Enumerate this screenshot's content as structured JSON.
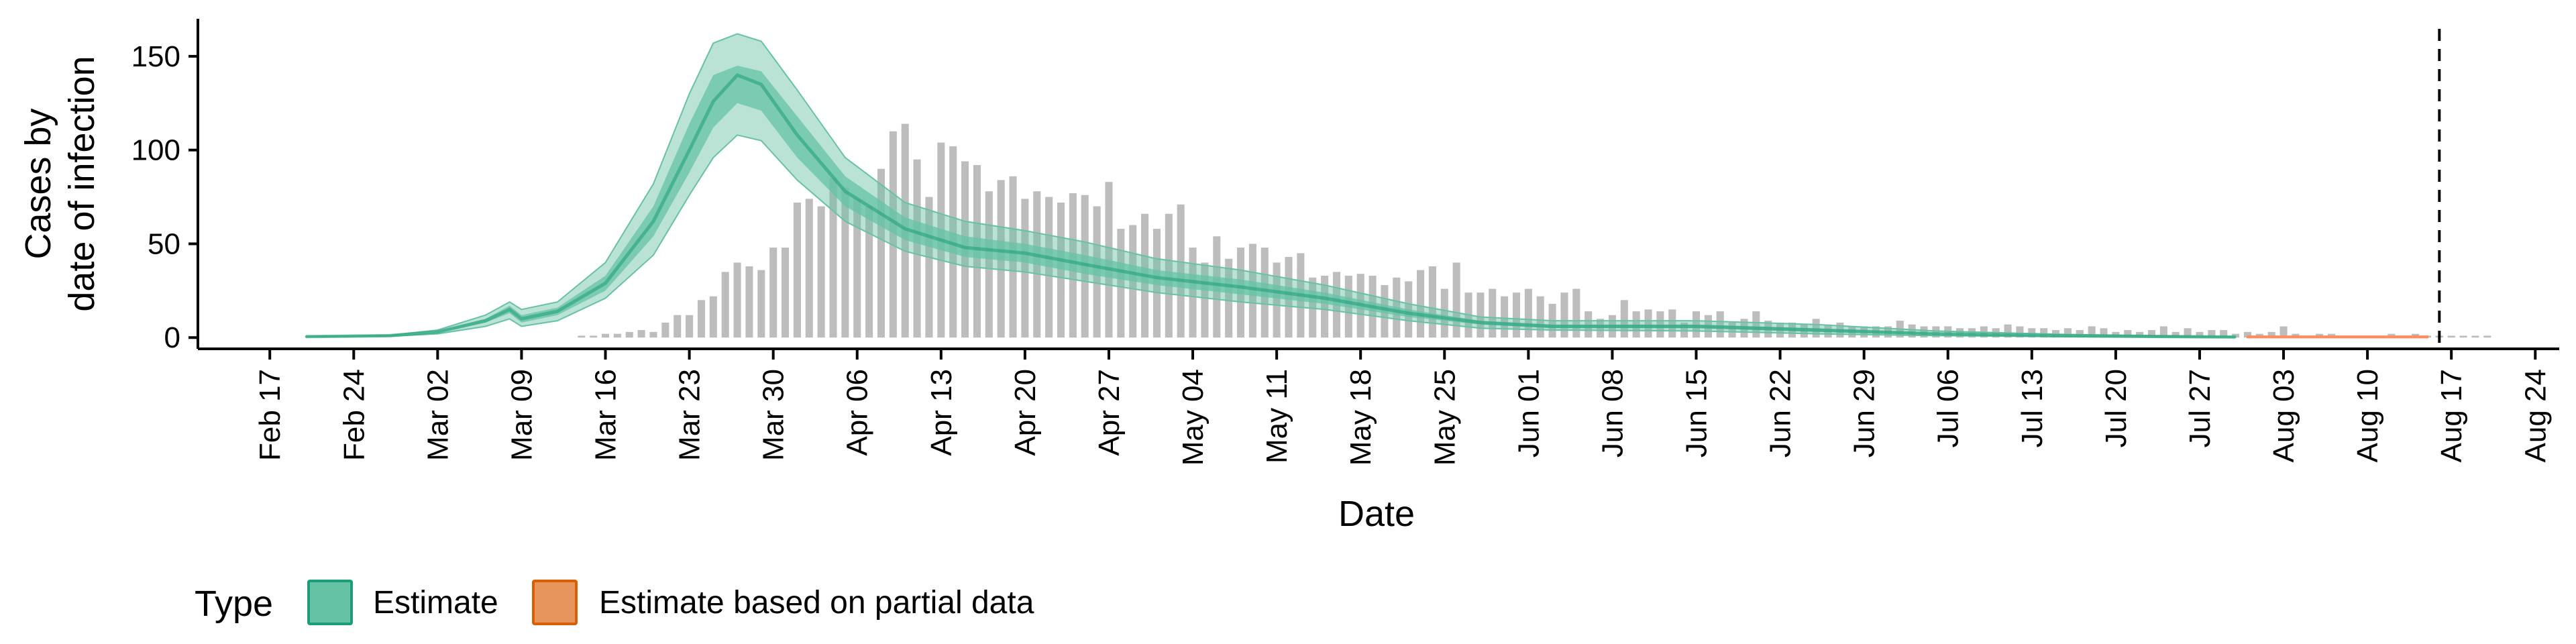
{
  "chart_data": {
    "type": "area",
    "xlabel": "Date",
    "ylabel_lines": [
      "Cases by",
      "date of infection"
    ],
    "ylim": [
      -6,
      170
    ],
    "y_ticks": [
      0,
      50,
      100,
      150
    ],
    "xlim": [
      "2020-02-11",
      "2020-08-26"
    ],
    "x_ticks": [
      {
        "date": "2020-02-17",
        "label": "Feb 17"
      },
      {
        "date": "2020-02-24",
        "label": "Feb 24"
      },
      {
        "date": "2020-03-02",
        "label": "Mar 02"
      },
      {
        "date": "2020-03-09",
        "label": "Mar 09"
      },
      {
        "date": "2020-03-16",
        "label": "Mar 16"
      },
      {
        "date": "2020-03-23",
        "label": "Mar 23"
      },
      {
        "date": "2020-03-30",
        "label": "Mar 30"
      },
      {
        "date": "2020-04-06",
        "label": "Apr 06"
      },
      {
        "date": "2020-04-13",
        "label": "Apr 13"
      },
      {
        "date": "2020-04-20",
        "label": "Apr 20"
      },
      {
        "date": "2020-04-27",
        "label": "Apr 27"
      },
      {
        "date": "2020-05-04",
        "label": "May 04"
      },
      {
        "date": "2020-05-11",
        "label": "May 11"
      },
      {
        "date": "2020-05-18",
        "label": "May 18"
      },
      {
        "date": "2020-05-25",
        "label": "May 25"
      },
      {
        "date": "2020-06-01",
        "label": "Jun 01"
      },
      {
        "date": "2020-06-08",
        "label": "Jun 08"
      },
      {
        "date": "2020-06-15",
        "label": "Jun 15"
      },
      {
        "date": "2020-06-22",
        "label": "Jun 22"
      },
      {
        "date": "2020-06-29",
        "label": "Jun 29"
      },
      {
        "date": "2020-07-06",
        "label": "Jul 06"
      },
      {
        "date": "2020-07-13",
        "label": "Jul 13"
      },
      {
        "date": "2020-07-20",
        "label": "Jul 20"
      },
      {
        "date": "2020-07-27",
        "label": "Jul 27"
      },
      {
        "date": "2020-08-03",
        "label": "Aug 03"
      },
      {
        "date": "2020-08-10",
        "label": "Aug 10"
      },
      {
        "date": "2020-08-17",
        "label": "Aug 17"
      },
      {
        "date": "2020-08-24",
        "label": "Aug 24"
      }
    ],
    "vline_date": "2020-08-16",
    "colors": {
      "estimate": "#66c2a5",
      "estimate_dark": "#1b9e77",
      "partial": "#fc8d62",
      "partial_border": "#d95f02",
      "bars": "#bdbdbd"
    },
    "legend": {
      "title": "Type",
      "position": "bottom-left",
      "items": [
        {
          "label": "Estimate",
          "color": "#66c2a5",
          "border": "#1b9e77"
        },
        {
          "label": "Estimate based on partial data",
          "color": "#e8955d",
          "border": "#d95f02"
        }
      ]
    },
    "bars": {
      "start_date": "2020-03-14",
      "values": [
        1,
        1,
        2,
        2,
        3,
        4,
        3,
        8,
        12,
        12,
        20,
        22,
        35,
        40,
        38,
        36,
        48,
        48,
        72,
        74,
        70,
        85,
        80,
        74,
        70,
        90,
        110,
        114,
        95,
        75,
        104,
        102,
        94,
        92,
        78,
        84,
        86,
        74,
        78,
        75,
        72,
        77,
        76,
        70,
        83,
        58,
        60,
        66,
        58,
        66,
        71,
        48,
        40,
        54,
        42,
        48,
        50,
        48,
        40,
        43,
        45,
        32,
        33,
        35,
        33,
        34,
        33,
        28,
        32,
        30,
        36,
        38,
        26,
        40,
        24,
        24,
        26,
        22,
        24,
        26,
        22,
        18,
        24,
        26,
        14,
        10,
        12,
        20,
        14,
        15,
        14,
        15,
        8,
        14,
        12,
        14,
        8,
        10,
        14,
        9,
        8,
        8,
        7,
        10,
        7,
        8,
        6,
        6,
        6,
        6,
        9,
        7,
        6,
        6,
        6,
        5,
        5,
        6,
        5,
        7,
        6,
        5,
        5,
        4,
        5,
        4,
        6,
        5,
        3,
        4,
        3,
        4,
        6,
        3,
        5,
        3,
        4,
        4,
        2,
        3,
        2,
        3,
        6,
        2,
        1,
        2,
        2,
        1,
        1,
        1,
        1,
        2,
        1,
        2,
        1,
        1,
        1,
        1,
        1,
        1,
        0,
        0,
        0,
        0,
        0,
        0,
        0,
        0,
        0,
        0,
        0,
        0,
        0,
        0,
        0,
        0,
        0,
        0,
        0,
        0,
        0,
        0,
        0,
        0,
        0
      ]
    },
    "estimate": {
      "dates": [
        "2020-02-20",
        "2020-02-27",
        "2020-03-02",
        "2020-03-06",
        "2020-03-08",
        "2020-03-09",
        "2020-03-12",
        "2020-03-16",
        "2020-03-20",
        "2020-03-23",
        "2020-03-25",
        "2020-03-27",
        "2020-03-29",
        "2020-04-01",
        "2020-04-05",
        "2020-04-10",
        "2020-04-15",
        "2020-04-20",
        "2020-04-25",
        "2020-05-01",
        "2020-05-08",
        "2020-05-15",
        "2020-05-22",
        "2020-05-28",
        "2020-06-03",
        "2020-06-15",
        "2020-06-25",
        "2020-07-05",
        "2020-07-15",
        "2020-07-25",
        "2020-07-30"
      ],
      "median": [
        0.5,
        1,
        3,
        9,
        15,
        10,
        14,
        29,
        62,
        100,
        126,
        140,
        135,
        108,
        78,
        58,
        48,
        45,
        39,
        32,
        27,
        21,
        13,
        8,
        6,
        6,
        4,
        2,
        1,
        0.5,
        0.3
      ],
      "lower_50": [
        0.4,
        0.9,
        2.5,
        8,
        13,
        8,
        12,
        25,
        54,
        88,
        112,
        125,
        121,
        96,
        70,
        52,
        43,
        40,
        34,
        28,
        23,
        18,
        11,
        7,
        5,
        5,
        3,
        1.5,
        0.8,
        0.4,
        0.2
      ],
      "upper_50": [
        0.6,
        1.1,
        3.5,
        10,
        17,
        12,
        16,
        33,
        70,
        114,
        140,
        145,
        142,
        118,
        86,
        64,
        54,
        50,
        44,
        36,
        31,
        24,
        15,
        9,
        7,
        7,
        5,
        2.5,
        1.3,
        0.6,
        0.4
      ],
      "lower_90": [
        0.3,
        0.7,
        2,
        6,
        10,
        6,
        9,
        21,
        44,
        76,
        96,
        108,
        105,
        84,
        62,
        46,
        38,
        35,
        30,
        24,
        19,
        15,
        9,
        5,
        4,
        3.5,
        2,
        1,
        0.5,
        0.2,
        0.1
      ],
      "upper_90": [
        0.7,
        1.3,
        4,
        12,
        19,
        15,
        19,
        40,
        82,
        130,
        157,
        162,
        158,
        132,
        96,
        72,
        62,
        57,
        51,
        42,
        36,
        28,
        18,
        11,
        9,
        9,
        7,
        3.5,
        1.8,
        0.8,
        0.5
      ]
    },
    "partial": {
      "dates": [
        "2020-07-31",
        "2020-08-05",
        "2020-08-10",
        "2020-08-15"
      ],
      "median": [
        0.3,
        0.3,
        0.3,
        0.3
      ],
      "lower_90": [
        0.1,
        0.1,
        0.1,
        0.1
      ],
      "upper_90": [
        0.6,
        0.6,
        0.6,
        0.6
      ]
    }
  }
}
